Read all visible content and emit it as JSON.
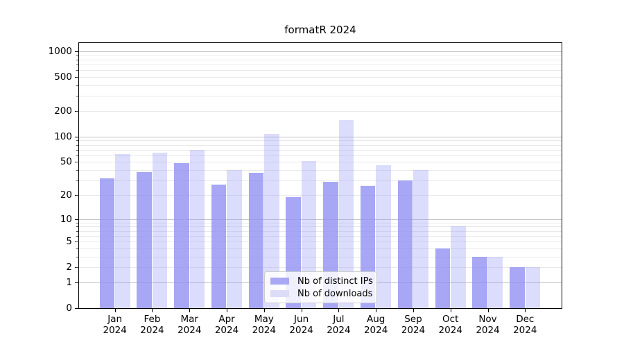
{
  "title": "formatR 2024",
  "chart_data": {
    "type": "bar",
    "title": "formatR 2024",
    "categories": [
      "Jan",
      "Feb",
      "Mar",
      "Apr",
      "May",
      "Jun",
      "Jul",
      "Aug",
      "Sep",
      "Oct",
      "Nov",
      "Dec"
    ],
    "x_tick_second_line": "2024",
    "series": [
      {
        "name": "Nb of distinct IPs",
        "color": "rgba(145,145,243,0.80)",
        "solid_color": "#a8a8f4",
        "values": [
          32,
          38,
          49,
          27,
          37,
          19,
          29,
          26,
          30,
          4,
          3,
          2
        ]
      },
      {
        "name": "Nb of downloads",
        "color": "rgba(150,150,245,0.33)",
        "solid_color": "#dcdcf8",
        "values": [
          62,
          65,
          70,
          40,
          108,
          51,
          158,
          46,
          40,
          8,
          3,
          2
        ]
      }
    ],
    "yscale": "log1p",
    "yticks": [
      0,
      1,
      2,
      5,
      10,
      20,
      50,
      100,
      200,
      500,
      1000
    ],
    "ylim": [
      0,
      1350
    ],
    "grid": "on",
    "legend_position": "bottom-center"
  },
  "colors": {
    "background": "#ffffff",
    "spine": "#000000",
    "major_grid": "#c2c2c2",
    "minor_grid": "#e9e9e9",
    "text": "#000000"
  }
}
